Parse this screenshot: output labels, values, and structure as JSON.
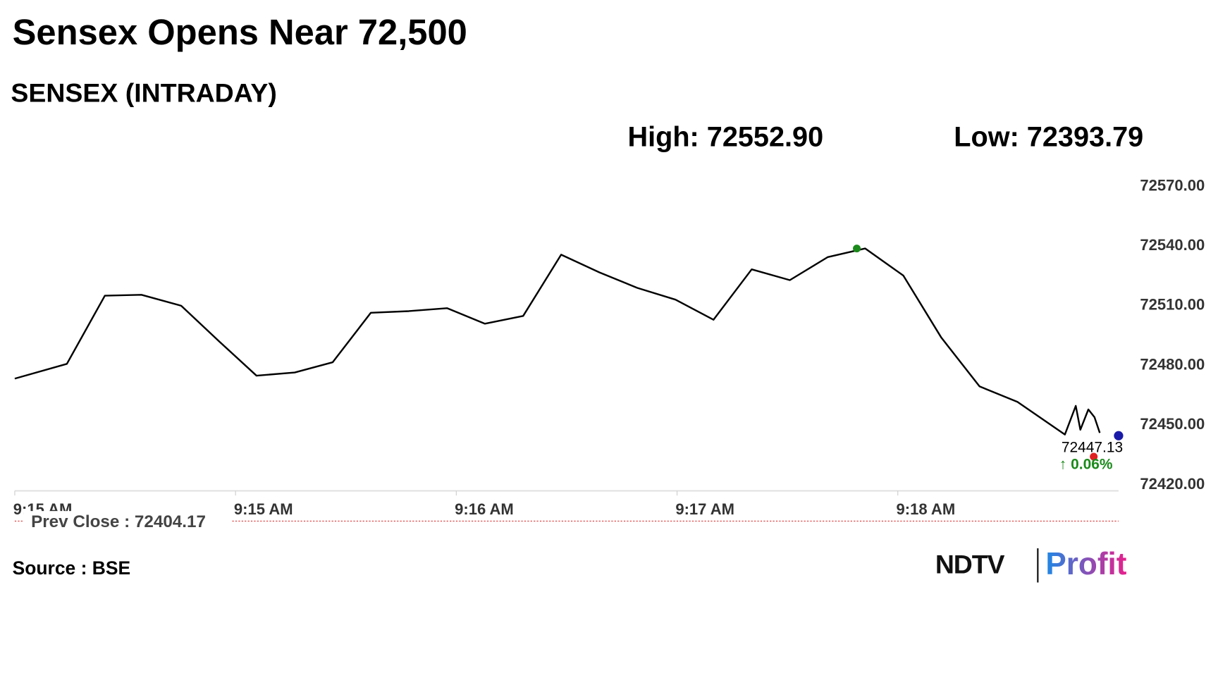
{
  "chart_data": {
    "type": "line",
    "title": "Sensex Opens Near 72,500",
    "subtitle": "SENSEX (INTRADAY)",
    "high": "High: 72552.90",
    "low": "Low: 72393.79",
    "last_value": "72447.13",
    "change": "↑ 0.06%",
    "prev_close": "Prev Close : 72404.17",
    "source": "Source : BSE",
    "logo": [
      "NDTV",
      "Profit"
    ],
    "x": [
      554.0,
      554.236,
      554.408,
      554.574,
      554.754,
      554.926,
      555.095,
      555.268,
      555.44,
      555.613,
      555.785,
      555.958,
      556.13,
      556.303,
      556.475,
      556.648,
      556.82,
      556.993,
      557.165,
      557.338,
      557.511,
      557.683,
      557.852,
      558.025,
      558.197,
      558.37,
      558.542,
      558.757,
      558.806,
      558.827,
      558.863,
      558.891,
      558.915
    ],
    "series": [
      {
        "name": "SENSEX",
        "color": "#000000",
        "values": [
          72473.4,
          72480.8,
          72515.1,
          72515.5,
          72510.0,
          72492.1,
          72474.9,
          72476.5,
          72481.6,
          72506.5,
          72507.3,
          72508.8,
          72501.0,
          72504.9,
          72535.7,
          72526.8,
          72519.0,
          72513.1,
          72503.0,
          72528.3,
          72522.9,
          72534.5,
          72538.8,
          72525.2,
          72494.0,
          72469.5,
          72461.7,
          72445.3,
          72459.7,
          72447.7,
          72457.9,
          72454.0,
          72446.1
        ]
      }
    ],
    "xlim": [
      554,
      559
    ],
    "xticks": [
      {
        "value": 554,
        "label": "9:15 AM"
      },
      {
        "value": 555,
        "label": "9:15 AM"
      },
      {
        "value": 556,
        "label": "9:16 AM"
      },
      {
        "value": 557,
        "label": "9:17 AM"
      },
      {
        "value": 558,
        "label": "9:18 AM"
      }
    ],
    "ylim": [
      72417,
      72570
    ],
    "yticks": [
      {
        "value": 72570,
        "label": "72570.00"
      },
      {
        "value": 72540,
        "label": "72540.00"
      },
      {
        "value": 72510,
        "label": "72510.00"
      },
      {
        "value": 72480,
        "label": "72480.00"
      },
      {
        "value": 72450,
        "label": "72450.00"
      },
      {
        "value": 72420,
        "label": "72420.00"
      }
    ],
    "grid": false
  }
}
